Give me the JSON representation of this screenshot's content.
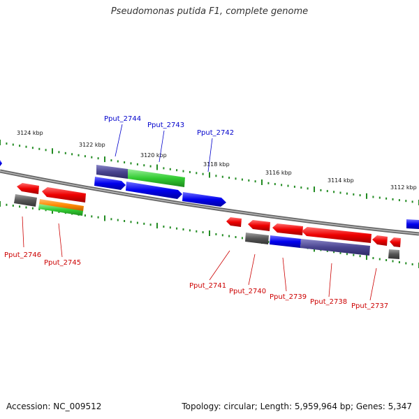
{
  "title": "Pseudomonas putida F1, complete genome",
  "accession_text": "Accession: NC_009512",
  "summary_text": "Topology: circular; Length: 5,959,964 bp; Genes: 5,347",
  "scale_labels": [
    "3124 kbp",
    "3122 kbp",
    "3120 kbp",
    "3118 kbp",
    "3116 kbp",
    "3114 kbp",
    "3112 kbp"
  ],
  "top_genes": [
    "Pput_2744",
    "Pput_2743",
    "Pput_2742"
  ],
  "bottom_genes": [
    "Pput_2746",
    "Pput_2745",
    "Pput_2741",
    "Pput_2740",
    "Pput_2739",
    "Pput_2738",
    "Pput_2737"
  ],
  "colors": {
    "forward_label": "#0000cc",
    "reverse_label": "#cc0000",
    "cds_blue": "#0000ee",
    "cds_red": "#ee0000",
    "cds_green": "#33cc33",
    "cds_orange": "#ff8800",
    "cds_gray": "#555555",
    "cds_slate": "#4a4590",
    "tick": "#228b22",
    "backbone": "#888888"
  }
}
